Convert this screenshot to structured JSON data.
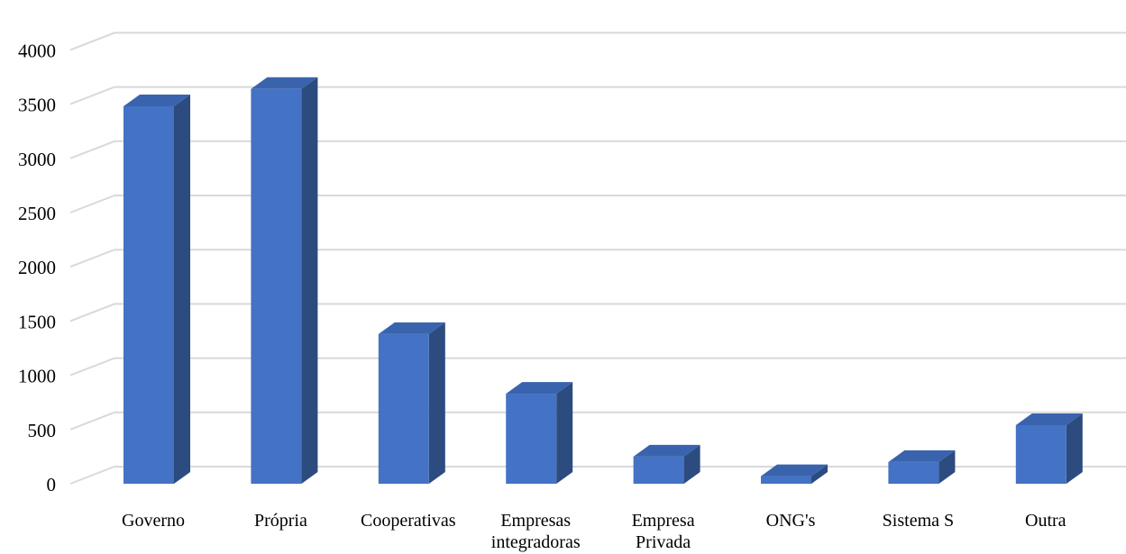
{
  "chart_data": {
    "type": "bar",
    "style": "3d-column",
    "title": "",
    "xlabel": "",
    "ylabel": "",
    "categories": [
      [
        "Governo"
      ],
      [
        "Própria"
      ],
      [
        "Cooperativas"
      ],
      [
        "Empresas",
        "integradoras"
      ],
      [
        "Empresa",
        "Privada"
      ],
      [
        "ONG's"
      ],
      [
        "Sistema S"
      ],
      [
        "Outra"
      ]
    ],
    "values": [
      3480,
      3640,
      1380,
      830,
      250,
      70,
      200,
      540
    ],
    "ylim": [
      0,
      4000
    ],
    "yticks": [
      "0",
      "500",
      "1000",
      "1500",
      "2000",
      "2500",
      "3000",
      "3500",
      "4000"
    ],
    "grid": true,
    "legend": "none",
    "colors": {
      "front": "#4472C4",
      "side": "#2C4B7E",
      "top": "#3A63AD",
      "grid": "#D9D9D9"
    }
  }
}
